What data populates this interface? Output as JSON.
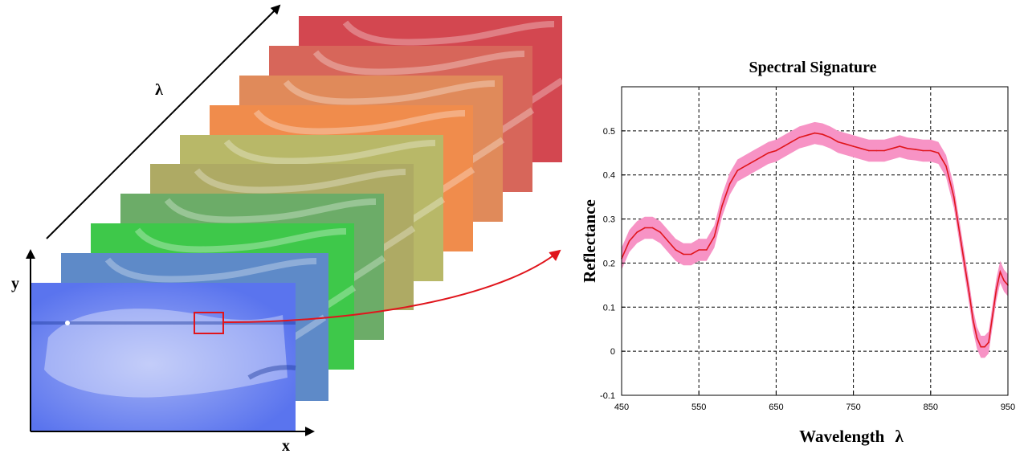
{
  "cube": {
    "x_axis_label": "x",
    "y_axis_label": "y",
    "lambda_axis_label": "λ",
    "band_colors": [
      "#d34750",
      "#d7665a",
      "#e08a5a",
      "#f08c4c",
      "#b8b868",
      "#aeaa64",
      "#6cac68",
      "#3ec84a",
      "#5e8ac8",
      "#5a74ee"
    ],
    "pixel_marker_color": "#e0151c"
  },
  "chart_data": {
    "type": "line",
    "title": "Spectral Signature",
    "xlabel": "Wavelength",
    "xlabel_symbol": "λ",
    "ylabel": "Reflectance",
    "xlim": [
      450,
      950
    ],
    "ylim": [
      -0.1,
      0.6
    ],
    "x_ticks": [
      450,
      550,
      650,
      750,
      850,
      950
    ],
    "y_ticks": [
      -0.1,
      0,
      0.1,
      0.2,
      0.3,
      0.4,
      0.5
    ],
    "y_tick_labels": [
      "-0.1",
      "0",
      "0.1",
      "0.2",
      "0.3",
      "0.4",
      "0.5"
    ],
    "grid": true,
    "series": [
      {
        "color": "#e0151c",
        "band_color": "#f793c5",
        "x": [
          450,
          460,
          470,
          480,
          490,
          500,
          510,
          520,
          530,
          540,
          550,
          560,
          570,
          580,
          590,
          600,
          610,
          620,
          630,
          640,
          650,
          660,
          670,
          680,
          690,
          700,
          710,
          720,
          730,
          740,
          750,
          760,
          770,
          780,
          790,
          800,
          810,
          820,
          830,
          840,
          850,
          860,
          870,
          880,
          890,
          900,
          905,
          910,
          915,
          920,
          925,
          930,
          935,
          940,
          945,
          950
        ],
        "y": [
          0.21,
          0.25,
          0.27,
          0.28,
          0.28,
          0.27,
          0.25,
          0.23,
          0.22,
          0.22,
          0.23,
          0.23,
          0.26,
          0.33,
          0.38,
          0.41,
          0.42,
          0.43,
          0.44,
          0.45,
          0.455,
          0.465,
          0.475,
          0.485,
          0.49,
          0.495,
          0.492,
          0.485,
          0.475,
          0.47,
          0.465,
          0.46,
          0.455,
          0.455,
          0.455,
          0.46,
          0.465,
          0.46,
          0.458,
          0.455,
          0.455,
          0.45,
          0.42,
          0.35,
          0.24,
          0.13,
          0.07,
          0.03,
          0.01,
          0.01,
          0.02,
          0.08,
          0.14,
          0.18,
          0.16,
          0.15
        ],
        "spread": 0.025
      }
    ]
  }
}
